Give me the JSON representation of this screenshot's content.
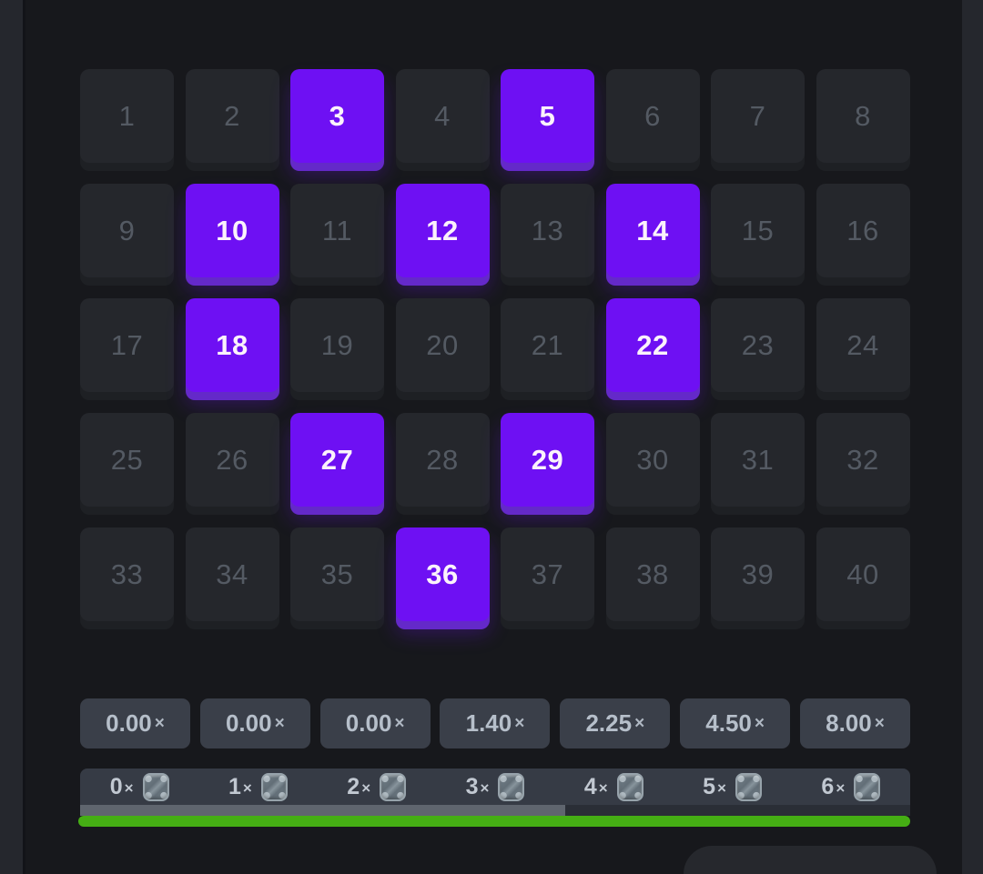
{
  "colors": {
    "page_bg": "#25272d",
    "game_bg": "#17181c",
    "tile_bg": "#25272c",
    "tile_lip": "#1e2024",
    "tile_number": "#545a63",
    "selected_bg": "#6e10f3",
    "selected_lip": "#6429c9",
    "selected_number": "#fbf2fb",
    "button_bg": "#3a3f49",
    "button_text": "#b6bfca",
    "bar_bg": "#363b45",
    "bar_text": "#c1c8d1",
    "track_fill": "#5f656e",
    "track_empty": "#2a2e36",
    "progress_green": "#45ae14",
    "sheet_bg": "#26282d",
    "gem_icon": "#87949c"
  },
  "board": {
    "rows": 5,
    "cols": 8,
    "numbers": [
      1,
      2,
      3,
      4,
      5,
      6,
      7,
      8,
      9,
      10,
      11,
      12,
      13,
      14,
      15,
      16,
      17,
      18,
      19,
      20,
      21,
      22,
      23,
      24,
      25,
      26,
      27,
      28,
      29,
      30,
      31,
      32,
      33,
      34,
      35,
      36,
      37,
      38,
      39,
      40
    ],
    "selected": [
      3,
      5,
      10,
      12,
      14,
      18,
      22,
      27,
      29,
      36
    ]
  },
  "paytable": {
    "times_symbol": "×",
    "gem_icon": "gem-icon",
    "multipliers": [
      {
        "hits": "0",
        "value": "0.00"
      },
      {
        "hits": "1",
        "value": "0.00"
      },
      {
        "hits": "2",
        "value": "0.00"
      },
      {
        "hits": "3",
        "value": "1.40"
      },
      {
        "hits": "4",
        "value": "2.25"
      },
      {
        "hits": "5",
        "value": "4.50"
      },
      {
        "hits": "6",
        "value": "8.00"
      }
    ]
  },
  "progress": {
    "track_fill_percent": 58.4,
    "green_fill_percent": 100
  }
}
